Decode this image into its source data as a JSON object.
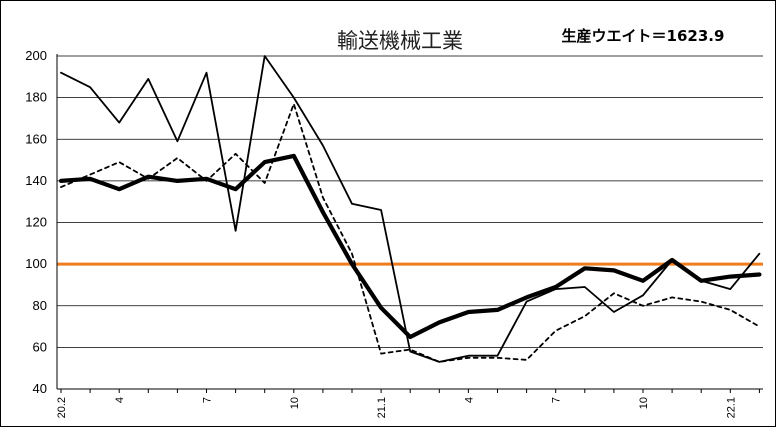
{
  "chart_data": {
    "type": "line",
    "title": "輸送機械工業",
    "weight_label": "生産ウエイト＝1623.9",
    "x": [
      "20.2",
      "20.3",
      "20.4",
      "20.5",
      "20.6",
      "20.7",
      "20.8",
      "20.9",
      "20.10",
      "20.11",
      "20.12",
      "21.1",
      "21.2",
      "21.3",
      "21.4",
      "21.5",
      "21.6",
      "21.7",
      "21.8",
      "21.9",
      "21.10",
      "21.11",
      "21.12",
      "22.1",
      "22.2"
    ],
    "xticks": [
      {
        "index": 0,
        "label": "20.2"
      },
      {
        "index": 2,
        "label": "4"
      },
      {
        "index": 5,
        "label": "7"
      },
      {
        "index": 8,
        "label": "10"
      },
      {
        "index": 11,
        "label": "21.1"
      },
      {
        "index": 14,
        "label": "4"
      },
      {
        "index": 17,
        "label": "7"
      },
      {
        "index": 20,
        "label": "10"
      },
      {
        "index": 23,
        "label": "22.1"
      }
    ],
    "ylim": [
      40,
      200
    ],
    "yticks": [
      40,
      60,
      80,
      100,
      120,
      140,
      160,
      180,
      200
    ],
    "grid": true,
    "reference_line": {
      "value": 100,
      "color": "#F07C1E"
    },
    "series": [
      {
        "style": "thin-solid",
        "color": "#000000",
        "values": [
          192,
          185,
          168,
          189,
          159,
          192,
          116,
          200,
          180,
          157,
          129,
          126,
          58,
          53,
          56,
          56,
          82,
          88,
          89,
          77,
          85,
          102,
          92,
          88,
          105
        ]
      },
      {
        "style": "dotted",
        "color": "#000000",
        "values": [
          137,
          143,
          149,
          141,
          151,
          140,
          153,
          139,
          177,
          132,
          105,
          57,
          59,
          53,
          55,
          55,
          54,
          68,
          75,
          86,
          80,
          84,
          82,
          78,
          70
        ]
      },
      {
        "style": "thick-solid",
        "color": "#000000",
        "values": [
          140,
          141,
          136,
          142,
          140,
          141,
          136,
          149,
          152,
          125,
          100,
          79,
          65,
          72,
          77,
          78,
          84,
          89,
          98,
          97,
          92,
          102,
          92,
          94,
          95
        ]
      }
    ]
  }
}
